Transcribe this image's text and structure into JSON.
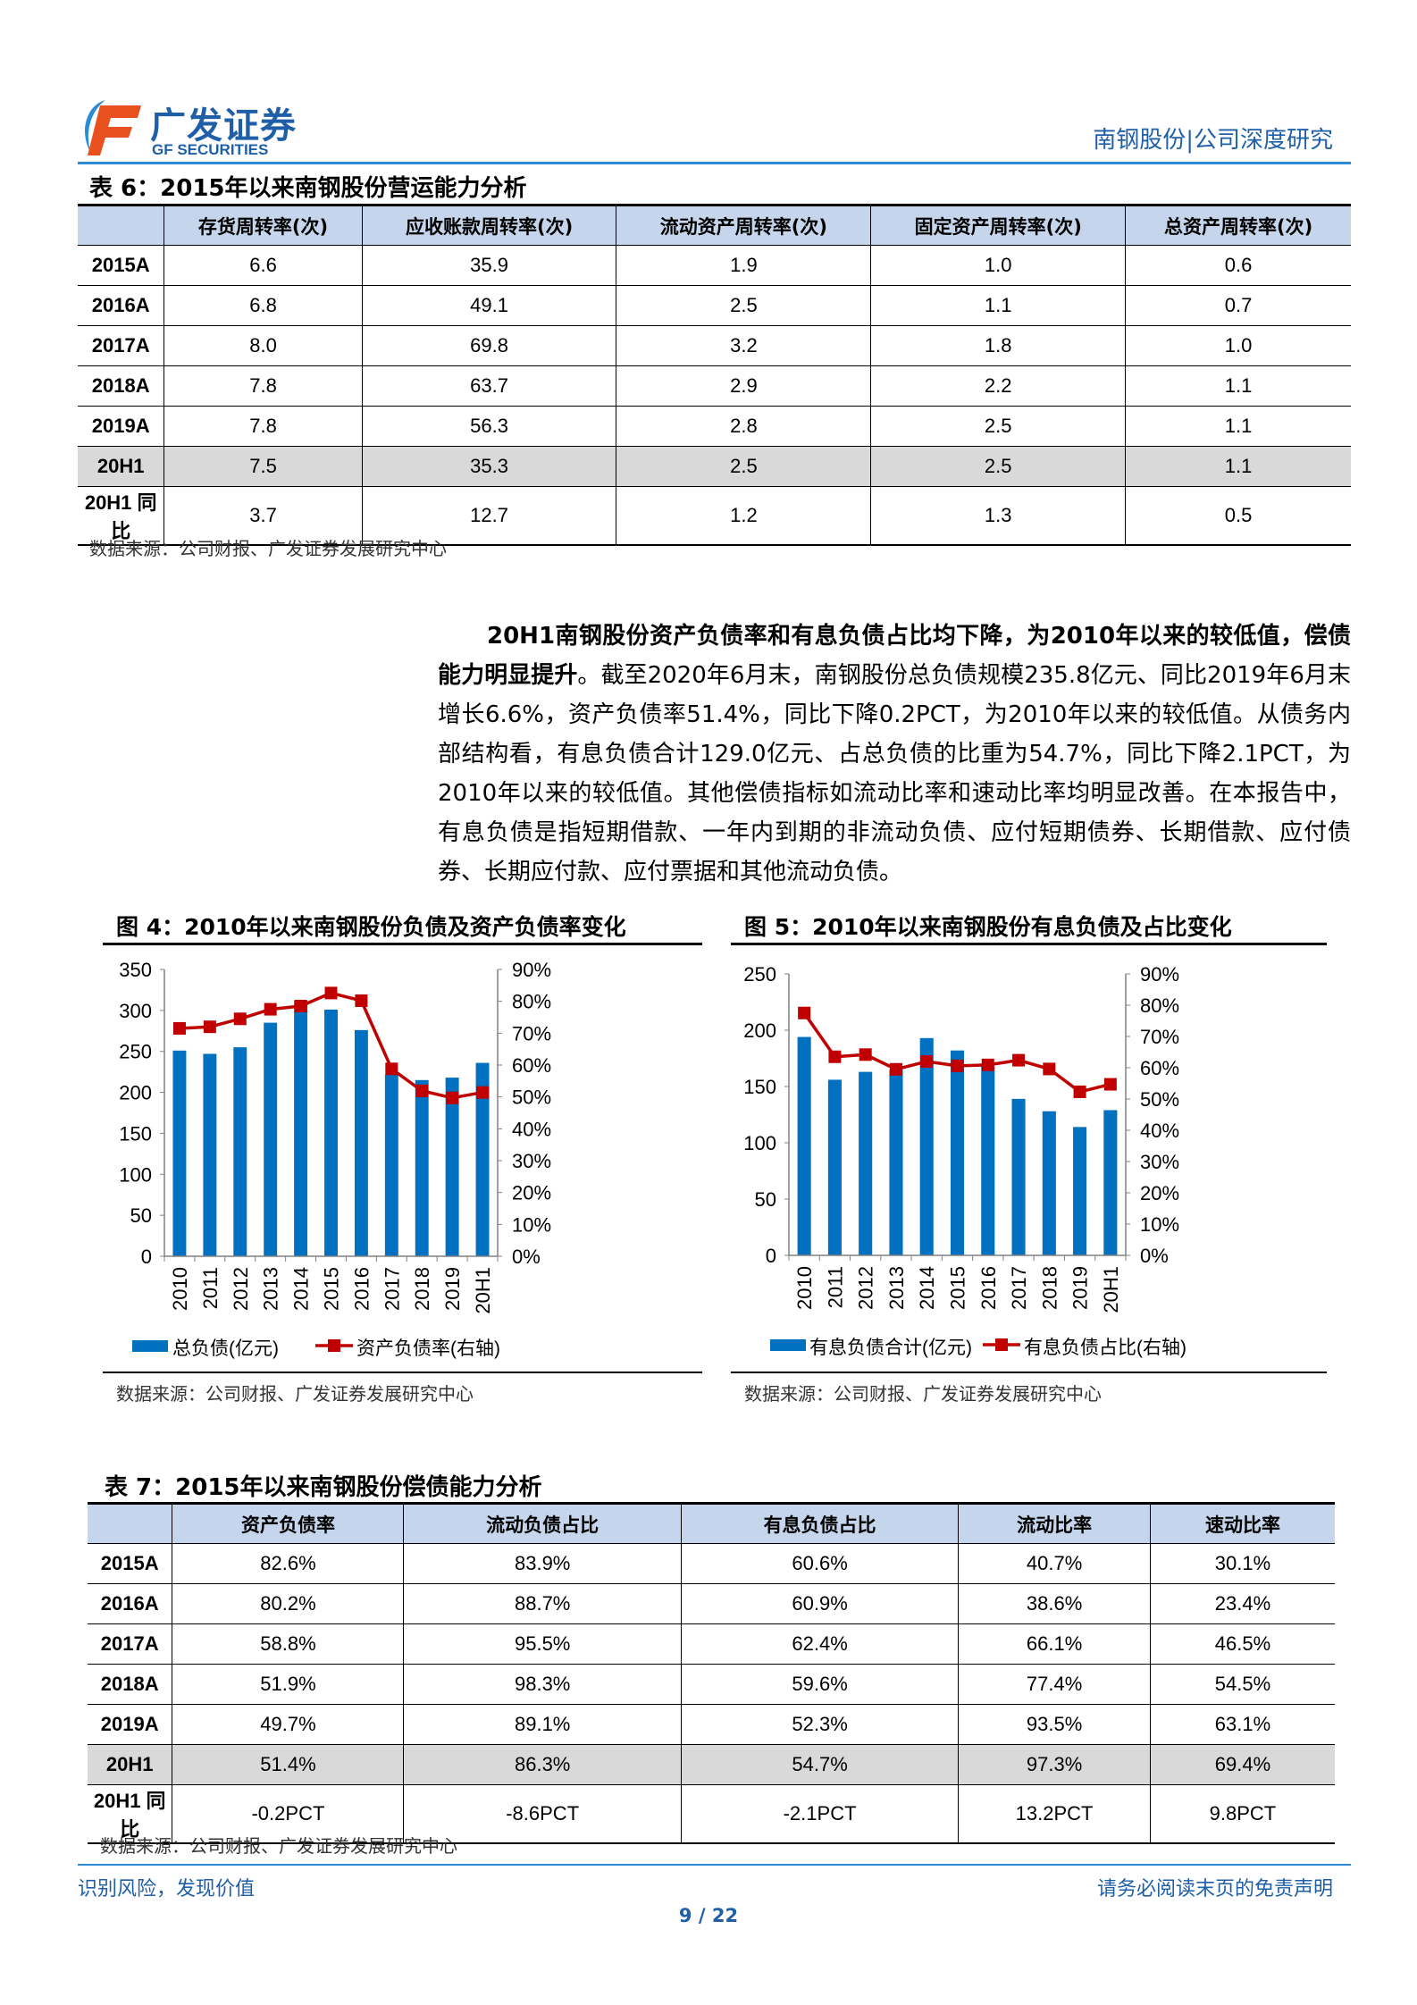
{
  "header": {
    "logo_cn": "广发证券",
    "logo_en": "GF SECURITIES",
    "doc_type": "南钢股份|公司深度研究",
    "brand_colors": {
      "blue": "#1f5fa8",
      "orange": "#e8501e"
    }
  },
  "table6": {
    "title": "表 6：2015年以来南钢股份营运能力分析",
    "columns": [
      "",
      "存货周转率(次)",
      "应收账款周转率(次)",
      "流动资产周转率(次)",
      "固定资产周转率(次)",
      "总资产周转率(次)"
    ],
    "rows": [
      [
        "2015A",
        "6.6",
        "35.9",
        "1.9",
        "1.0",
        "0.6"
      ],
      [
        "2016A",
        "6.8",
        "49.1",
        "2.5",
        "1.1",
        "0.7"
      ],
      [
        "2017A",
        "8.0",
        "69.8",
        "3.2",
        "1.8",
        "1.0"
      ],
      [
        "2018A",
        "7.8",
        "63.7",
        "2.9",
        "2.2",
        "1.1"
      ],
      [
        "2019A",
        "7.8",
        "56.3",
        "2.8",
        "2.5",
        "1.1"
      ],
      [
        "20H1",
        "7.5",
        "35.3",
        "2.5",
        "2.5",
        "1.1"
      ],
      [
        "20H1 同比",
        "3.7",
        "12.7",
        "1.2",
        "1.3",
        "0.5"
      ]
    ],
    "highlight_row": 5,
    "source": "数据来源：公司财报、广发证券发展研究中心"
  },
  "paragraph": {
    "bold": "20H1南钢股份资产负债率和有息负债占比均下降，为2010年以来的较低值，偿债能力明显提升",
    "text": "。截至2020年6月末，南钢股份总负债规模235.8亿元、同比2019年6月末增长6.6%，资产负债率51.4%，同比下降0.2PCT，为2010年以来的较低值。从债务内部结构看，有息负债合计129.0亿元、占总负债的比重为54.7%，同比下降2.1PCT，为2010年以来的较低值。其他偿债指标如流动比率和速动比率均明显改善。在本报告中，有息负债是指短期借款、一年内到期的非流动负债、应付短期债券、长期借款、应付债券、长期应付款、应付票据和其他流动负债。"
  },
  "chart_data": [
    {
      "type": "bar+line",
      "title": "图 4：2010年以来南钢股份负债及资产负债率变化",
      "categories": [
        "2010",
        "2011",
        "2012",
        "2013",
        "2014",
        "2015",
        "2016",
        "2017",
        "2018",
        "2019",
        "20H1"
      ],
      "series": [
        {
          "name": "总负债(亿元)",
          "type": "bar",
          "axis": "left",
          "color": "#0070c0",
          "values": [
            251,
            247,
            255,
            285,
            312,
            301,
            276,
            222,
            215,
            218,
            236
          ]
        },
        {
          "name": "资产负债率(右轴)",
          "type": "line",
          "axis": "right",
          "color": "#c00000",
          "values": [
            71.5,
            72.0,
            74.5,
            77.5,
            78.5,
            82.6,
            80.2,
            58.8,
            51.9,
            49.7,
            51.4
          ]
        }
      ],
      "ylim": [
        0,
        350
      ],
      "yticks": [
        "0",
        "50",
        "100",
        "150",
        "200",
        "250",
        "300",
        "350"
      ],
      "y2lim": [
        0,
        90
      ],
      "y2ticks": [
        "0%",
        "10%",
        "20%",
        "30%",
        "40%",
        "50%",
        "60%",
        "70%",
        "80%",
        "90%"
      ],
      "legend": "bottom",
      "source": "数据来源：公司财报、广发证券发展研究中心"
    },
    {
      "type": "bar+line",
      "title": "图 5：2010年以来南钢股份有息负债及占比变化",
      "categories": [
        "2010",
        "2011",
        "2012",
        "2013",
        "2014",
        "2015",
        "2016",
        "2017",
        "2018",
        "2019",
        "20H1"
      ],
      "series": [
        {
          "name": "有息负债合计(亿元)",
          "type": "bar",
          "axis": "left",
          "color": "#0070c0",
          "values": [
            194,
            156,
            163,
            165,
            193,
            182,
            168,
            139,
            128,
            114,
            129
          ]
        },
        {
          "name": "有息负债占比(右轴)",
          "type": "line",
          "axis": "right",
          "color": "#c00000",
          "values": [
            77.5,
            63.5,
            64.2,
            59.5,
            62.0,
            60.6,
            60.9,
            62.4,
            59.6,
            52.3,
            54.7
          ]
        }
      ],
      "ylim": [
        0,
        250
      ],
      "yticks": [
        "0",
        "50",
        "100",
        "150",
        "200",
        "250"
      ],
      "y2lim": [
        0,
        90
      ],
      "y2ticks": [
        "0%",
        "10%",
        "20%",
        "30%",
        "40%",
        "50%",
        "60%",
        "70%",
        "80%",
        "90%"
      ],
      "legend": "bottom",
      "source": "数据来源：公司财报、广发证券发展研究中心"
    }
  ],
  "table7": {
    "title": "表 7：2015年以来南钢股份偿债能力分析",
    "columns": [
      "",
      "资产负债率",
      "流动负债占比",
      "有息负债占比",
      "流动比率",
      "速动比率"
    ],
    "rows": [
      [
        "2015A",
        "82.6%",
        "83.9%",
        "60.6%",
        "40.7%",
        "30.1%"
      ],
      [
        "2016A",
        "80.2%",
        "88.7%",
        "60.9%",
        "38.6%",
        "23.4%"
      ],
      [
        "2017A",
        "58.8%",
        "95.5%",
        "62.4%",
        "66.1%",
        "46.5%"
      ],
      [
        "2018A",
        "51.9%",
        "98.3%",
        "59.6%",
        "77.4%",
        "54.5%"
      ],
      [
        "2019A",
        "49.7%",
        "89.1%",
        "52.3%",
        "93.5%",
        "63.1%"
      ],
      [
        "20H1",
        "51.4%",
        "86.3%",
        "54.7%",
        "97.3%",
        "69.4%"
      ],
      [
        "20H1 同比",
        "-0.2PCT",
        "-8.6PCT",
        "-2.1PCT",
        "13.2PCT",
        "9.8PCT"
      ]
    ],
    "highlight_row": 5,
    "source": "数据来源：公司财报、广发证券发展研究中心"
  },
  "footer": {
    "slogan": "识别风险，发现价值",
    "disclaimer": "请务必阅读末页的免责声明",
    "page": "9 / 22"
  }
}
